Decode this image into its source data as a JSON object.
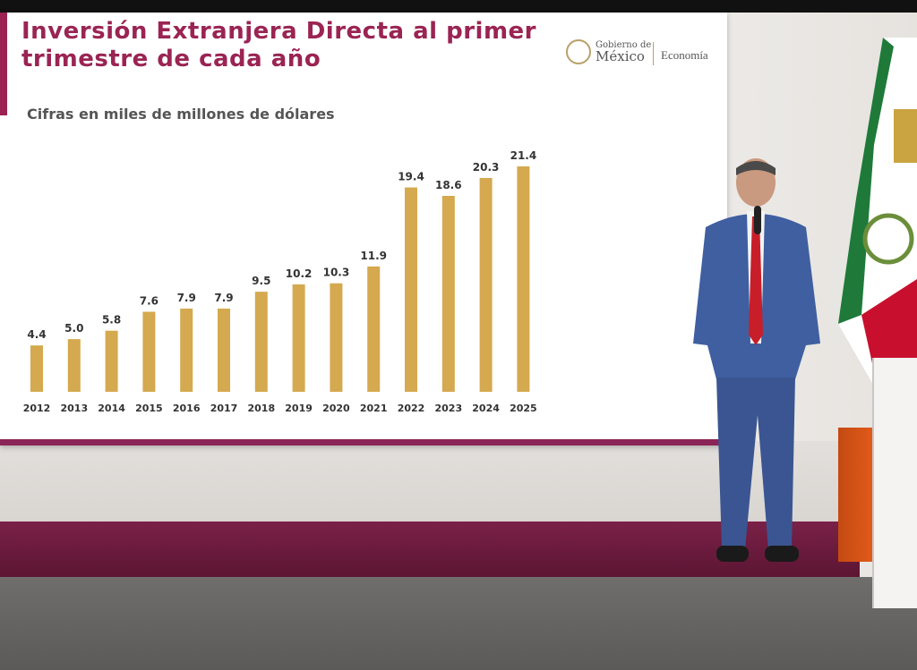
{
  "screen": {
    "title": "Inversión Extranjera Directa al primer trimestre de cada año",
    "subtitle": "Cifras en miles de millones de dólares"
  },
  "logo": {
    "gobierno_de": "Gobierno de",
    "mexico": "México",
    "economia": "Economía"
  },
  "colors": {
    "bar": "#d4a94f",
    "title": "#9a2453",
    "stripe": "#7a2148"
  },
  "chart_data": {
    "type": "bar",
    "title": "Inversión Extranjera Directa al primer trimestre de cada año",
    "subtitle": "Cifras en miles de millones de dólares",
    "categories": [
      "2012",
      "2013",
      "2014",
      "2015",
      "2016",
      "2017",
      "2018",
      "2019",
      "2020",
      "2021",
      "2022",
      "2023",
      "2024",
      "2025"
    ],
    "values": [
      4.4,
      5.0,
      5.8,
      7.6,
      7.9,
      7.9,
      9.5,
      10.2,
      10.3,
      11.9,
      19.4,
      18.6,
      20.3,
      21.4
    ],
    "value_labels": [
      "4.4",
      "5.0",
      "5.8",
      "7.6",
      "7.9",
      "7.9",
      "9.5",
      "10.2",
      "10.3",
      "11.9",
      "19.4",
      "18.6",
      "20.3",
      "21.4"
    ],
    "ylim": [
      0,
      21.4
    ],
    "grid": false,
    "legend": "none"
  }
}
